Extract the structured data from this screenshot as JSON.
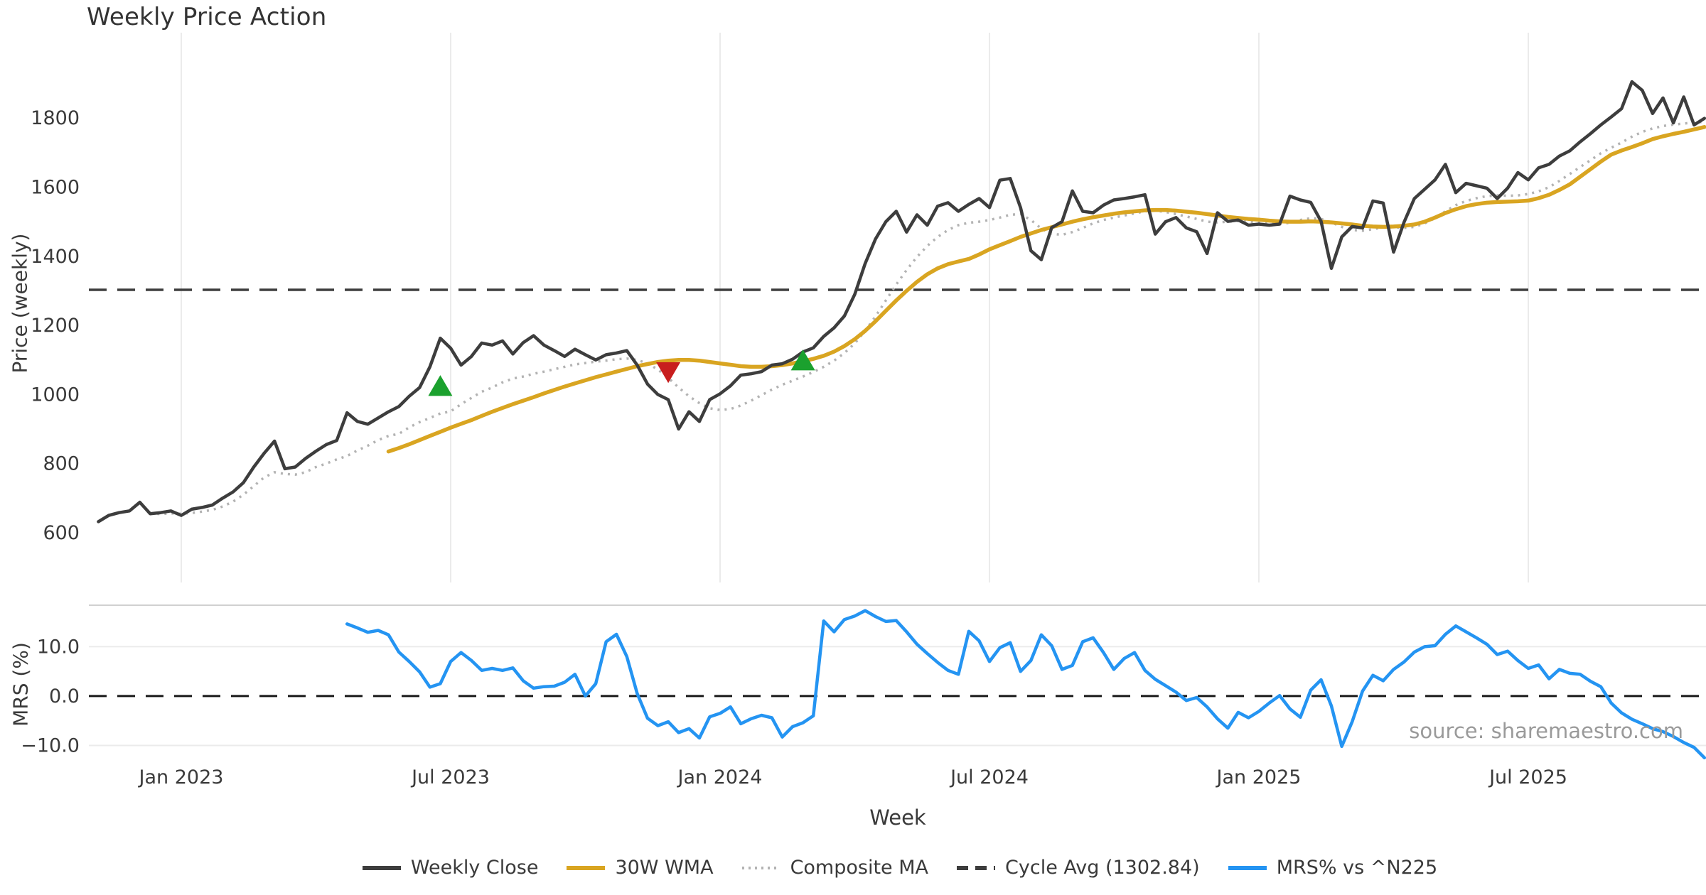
{
  "title": "Weekly Price Action",
  "source_note": "source: sharemaestro.com",
  "colors": {
    "close": "#3d3d3d",
    "wma30": "#d9a521",
    "composite": "#b3b3b3",
    "cycle_avg": "#3d3d3d",
    "mrs": "#2494f2",
    "buy_marker": "#1ba12e",
    "sell_marker": "#c81e1e",
    "gridline": "#ebebeb",
    "panel_border": "#d0d0d0",
    "text": "#3a3a3a",
    "source_text": "#9a9a9a"
  },
  "legend": {
    "items": [
      {
        "label": "Weekly Close",
        "style": "solid",
        "color": "#3d3d3d"
      },
      {
        "label": "30W WMA",
        "style": "solid",
        "color": "#d9a521"
      },
      {
        "label": "Composite MA",
        "style": "dotted",
        "color": "#b3b3b3"
      },
      {
        "label": "Cycle Avg (1302.84)",
        "style": "dashed",
        "color": "#3d3d3d"
      },
      {
        "label": "MRS% vs ^N225",
        "style": "solid",
        "color": "#2494f2"
      }
    ]
  },
  "chart_data": {
    "type": "line",
    "title": "Weekly Price Action",
    "xlabel": "Week",
    "x_ticks": [
      {
        "label": "Jan 2023",
        "week": 8
      },
      {
        "label": "Jul 2023",
        "week": 34
      },
      {
        "label": "Jan 2024",
        "week": 60
      },
      {
        "label": "Jul 2024",
        "week": 86
      },
      {
        "label": "Jan 2025",
        "week": 112
      },
      {
        "label": "Jul 2025",
        "week": 138
      }
    ],
    "weeks_total": 156,
    "panels": [
      {
        "name": "price",
        "ylabel": "Price (weekly)",
        "ylim": [
          456,
          2047
        ],
        "grid": "vertical-only",
        "yticks": [
          {
            "label": "600",
            "value": 600
          },
          {
            "label": "800",
            "value": 800
          },
          {
            "label": "1000",
            "value": 1000
          },
          {
            "label": "1200",
            "value": 1200
          },
          {
            "label": "1400",
            "value": 1400
          },
          {
            "label": "1600",
            "value": 1600
          },
          {
            "label": "1800",
            "value": 1800
          }
        ],
        "cycle_avg_value": 1302.84,
        "series": [
          {
            "name": "Weekly Close",
            "style": "solid",
            "color": "#3d3d3d",
            "width": 4.5,
            "start_week": 0,
            "values": [
              632,
              650,
              658,
              663,
              688,
              655,
              658,
              663,
              650,
              668,
              673,
              680,
              700,
              718,
              745,
              790,
              830,
              865,
              785,
              790,
              815,
              836,
              855,
              867,
              947,
              922,
              914,
              932,
              950,
              965,
              995,
              1020,
              1080,
              1163,
              1134,
              1085,
              1110,
              1149,
              1143,
              1155,
              1117,
              1150,
              1170,
              1143,
              1127,
              1110,
              1131,
              1115,
              1100,
              1115,
              1120,
              1127,
              1085,
              1030,
              1000,
              985,
              900,
              950,
              922,
              985,
              1002,
              1025,
              1056,
              1060,
              1066,
              1085,
              1089,
              1102,
              1123,
              1135,
              1168,
              1193,
              1227,
              1290,
              1379,
              1450,
              1500,
              1530,
              1470,
              1520,
              1490,
              1545,
              1555,
              1530,
              1550,
              1567,
              1541,
              1620,
              1625,
              1541,
              1416,
              1390,
              1483,
              1500,
              1589,
              1530,
              1526,
              1548,
              1563,
              1567,
              1572,
              1578,
              1464,
              1500,
              1512,
              1482,
              1471,
              1408,
              1526,
              1501,
              1505,
              1490,
              1493,
              1490,
              1493,
              1574,
              1563,
              1556,
              1501,
              1365,
              1456,
              1486,
              1482,
              1560,
              1554,
              1412,
              1498,
              1567,
              1594,
              1621,
              1666,
              1584,
              1611,
              1604,
              1597,
              1567,
              1597,
              1642,
              1621,
              1656,
              1666,
              1690,
              1705,
              1731,
              1755,
              1780,
              1803,
              1827,
              1905,
              1880,
              1813,
              1858,
              1786,
              1861,
              1780,
              1799
            ]
          },
          {
            "name": "30W WMA",
            "style": "solid",
            "color": "#d9a521",
            "width": 5.5,
            "start_week": 28,
            "values": [
              835,
              845,
              856,
              868,
              880,
              892,
              904,
              915,
              926,
              938,
              950,
              961,
              972,
              982,
              992,
              1003,
              1013,
              1023,
              1032,
              1041,
              1050,
              1058,
              1066,
              1074,
              1082,
              1088,
              1094,
              1098,
              1100,
              1100,
              1098,
              1094,
              1090,
              1086,
              1082,
              1080,
              1080,
              1082,
              1085,
              1090,
              1096,
              1103,
              1112,
              1124,
              1140,
              1160,
              1184,
              1212,
              1242,
              1272,
              1300,
              1326,
              1348,
              1365,
              1377,
              1385,
              1392,
              1405,
              1420,
              1432,
              1444,
              1456,
              1466,
              1476,
              1484,
              1492,
              1500,
              1507,
              1513,
              1518,
              1523,
              1527,
              1530,
              1533,
              1534,
              1534,
              1532,
              1529,
              1526,
              1522,
              1518,
              1514,
              1511,
              1508,
              1506,
              1503,
              1501,
              1500,
              1500,
              1501,
              1500,
              1498,
              1495,
              1492,
              1488,
              1486,
              1485,
              1486,
              1488,
              1492,
              1500,
              1512,
              1525,
              1536,
              1545,
              1551,
              1555,
              1557,
              1558,
              1559,
              1561,
              1568,
              1578,
              1592,
              1608,
              1630,
              1652,
              1674,
              1694,
              1706,
              1716,
              1727,
              1739,
              1747,
              1754,
              1760,
              1767,
              1774
            ]
          },
          {
            "name": "Composite MA",
            "style": "dotted",
            "color": "#b3b3b3",
            "width": 3.5,
            "start_week": 5,
            "values": [
              655,
              654,
              656,
              655,
              657,
              661,
              666,
              676,
              690,
              710,
              735,
              760,
              775,
              770,
              768,
              775,
              790,
              800,
              812,
              822,
              838,
              852,
              868,
              880,
              886,
              905,
              920,
              932,
              945,
              951,
              972,
              990,
              1008,
              1020,
              1035,
              1046,
              1052,
              1060,
              1066,
              1073,
              1080,
              1087,
              1091,
              1095,
              1098,
              1102,
              1104,
              1100,
              1090,
              1072,
              1048,
              1020,
              995,
              975,
              960,
              955,
              958,
              968,
              982,
              998,
              1014,
              1028,
              1040,
              1052,
              1065,
              1080,
              1098,
              1120,
              1148,
              1184,
              1226,
              1272,
              1318,
              1360,
              1398,
              1430,
              1456,
              1476,
              1490,
              1497,
              1500,
              1505,
              1512,
              1520,
              1522,
              1505,
              1480,
              1465,
              1462,
              1470,
              1482,
              1495,
              1505,
              1512,
              1518,
              1524,
              1530,
              1532,
              1528,
              1522,
              1515,
              1508,
              1500,
              1498,
              1500,
              1502,
              1500,
              1497,
              1494,
              1493,
              1497,
              1505,
              1510,
              1508,
              1498,
              1485,
              1476,
              1474,
              1478,
              1484,
              1484,
              1482,
              1485,
              1495,
              1510,
              1530,
              1548,
              1560,
              1568,
              1574,
              1576,
              1575,
              1576,
              1580,
              1588,
              1600,
              1618,
              1638,
              1658,
              1678,
              1698,
              1714,
              1729,
              1746,
              1760,
              1770,
              1777,
              1781,
              1784,
              1787,
              1789
            ]
          }
        ],
        "markers": [
          {
            "shape": "triangle-up",
            "label": "golden-cross",
            "color": "#1ba12e",
            "week": 33,
            "price": 1021
          },
          {
            "shape": "triangle-down",
            "label": "death-cross",
            "color": "#c81e1e",
            "week": 55,
            "price": 1068
          },
          {
            "shape": "triangle-up",
            "label": "golden-cross",
            "color": "#1ba12e",
            "week": 68,
            "price": 1095
          }
        ]
      },
      {
        "name": "mrs",
        "ylabel": "MRS (%)",
        "ylim": [
          -13.1,
          18.4
        ],
        "grid": "horizontal-only",
        "yticks": [
          {
            "label": "10.0",
            "value": 10
          },
          {
            "label": "0.0",
            "value": 0
          },
          {
            "label": "−10.0",
            "value": -10
          }
        ],
        "zero_dashed_line": true,
        "series": [
          {
            "name": "MRS% vs ^N225",
            "style": "solid",
            "color": "#2494f2",
            "width": 4.5,
            "start_week": 24,
            "values": [
              14.6,
              13.8,
              12.9,
              13.3,
              12.4,
              8.9,
              7.0,
              4.9,
              1.8,
              2.5,
              7.0,
              8.8,
              7.2,
              5.2,
              5.6,
              5.2,
              5.7,
              3.1,
              1.6,
              1.9,
              2.0,
              2.8,
              4.4,
              0.0,
              2.5,
              11.0,
              12.5,
              8.0,
              0.5,
              -4.5,
              -6.0,
              -5.2,
              -7.4,
              -6.6,
              -8.5,
              -4.2,
              -3.5,
              -2.2,
              -5.6,
              -4.6,
              -3.9,
              -4.4,
              -8.3,
              -6.2,
              -5.4,
              -4.0,
              15.2,
              13.0,
              15.5,
              16.2,
              17.3,
              16.1,
              15.1,
              15.3,
              13.0,
              10.5,
              8.6,
              6.8,
              5.2,
              4.4,
              13.1,
              11.2,
              7.0,
              9.8,
              10.8,
              5.0,
              7.2,
              12.4,
              10.2,
              5.4,
              6.2,
              11.0,
              11.8,
              8.8,
              5.4,
              7.6,
              8.8,
              5.2,
              3.4,
              2.1,
              0.8,
              -0.9,
              -0.3,
              -2.2,
              -4.6,
              -6.5,
              -3.3,
              -4.4,
              -3.1,
              -1.4,
              0.1,
              -2.6,
              -4.3,
              1.2,
              3.3,
              -2.0,
              -10.2,
              -5.2,
              1.0,
              4.2,
              3.1,
              5.4,
              6.9,
              8.9,
              10.0,
              10.2,
              12.5,
              14.2,
              13.0,
              11.8,
              10.5,
              8.4,
              9.1,
              7.2,
              5.6,
              6.3,
              3.5,
              5.4,
              4.6,
              4.4,
              3.0,
              1.9,
              -1.4,
              -3.4,
              -4.7,
              -5.6,
              -6.6,
              -7.2,
              -8.2,
              -9.4,
              -10.4,
              -12.5
            ]
          }
        ]
      }
    ]
  }
}
